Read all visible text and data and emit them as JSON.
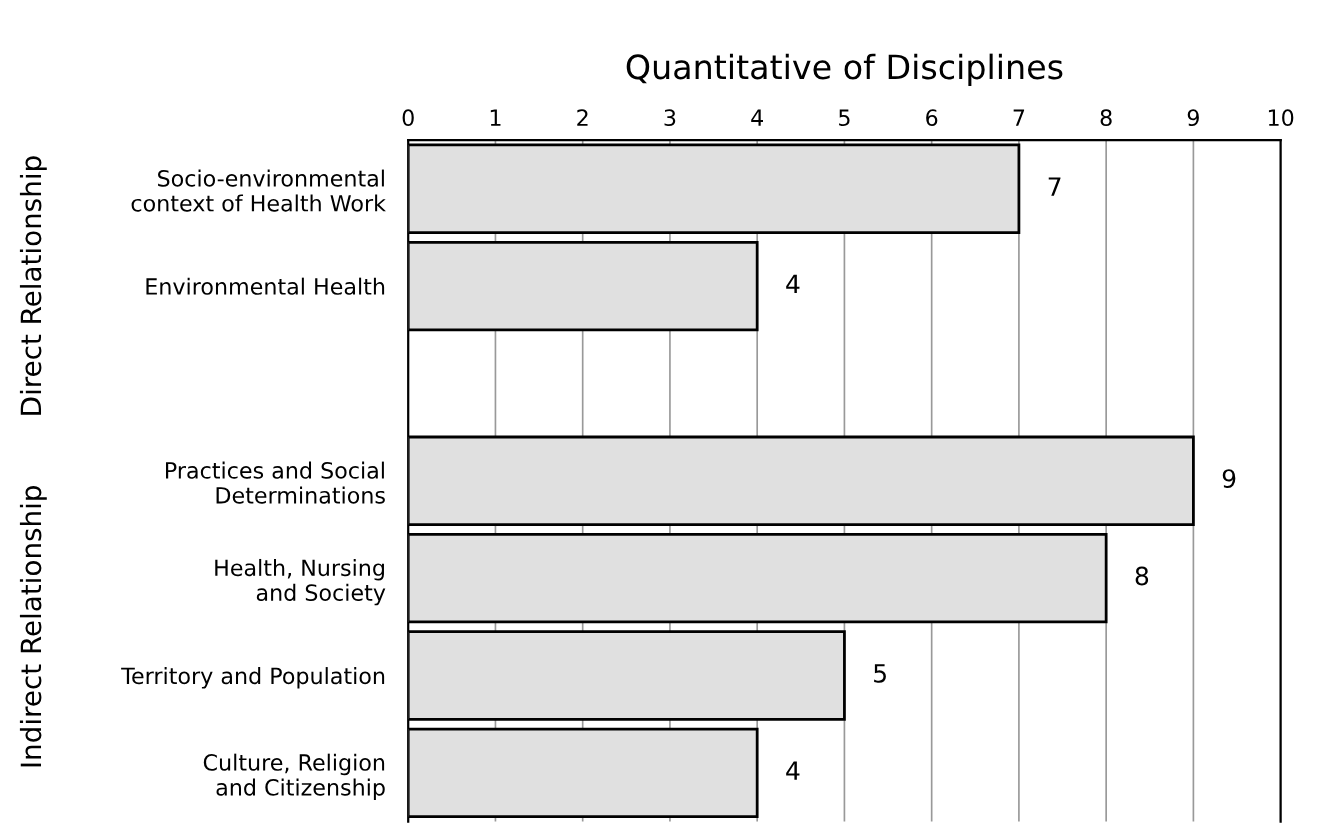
{
  "chart_data": {
    "type": "bar",
    "orientation": "horizontal",
    "title": "Quantitative of Disciplines",
    "categories": [
      "Socio-environmental\ncontext of Health Work",
      "Environmental Health",
      null,
      "Practices and Social\nDeterminations",
      "Health, Nursing\nand Society",
      "Territory and Population",
      "Culture, Religion\nand Citizenship"
    ],
    "values": [
      7,
      4,
      null,
      9,
      8,
      5,
      4
    ],
    "color": "#e0e0e0",
    "xlim": [
      0,
      10
    ],
    "xticks": [
      0,
      1,
      2,
      3,
      4,
      5,
      6,
      7,
      8,
      9,
      10
    ],
    "grid": "x",
    "data_labels": true,
    "annotations": [
      "Direct Relationship",
      "Indirect Relationship"
    ]
  }
}
